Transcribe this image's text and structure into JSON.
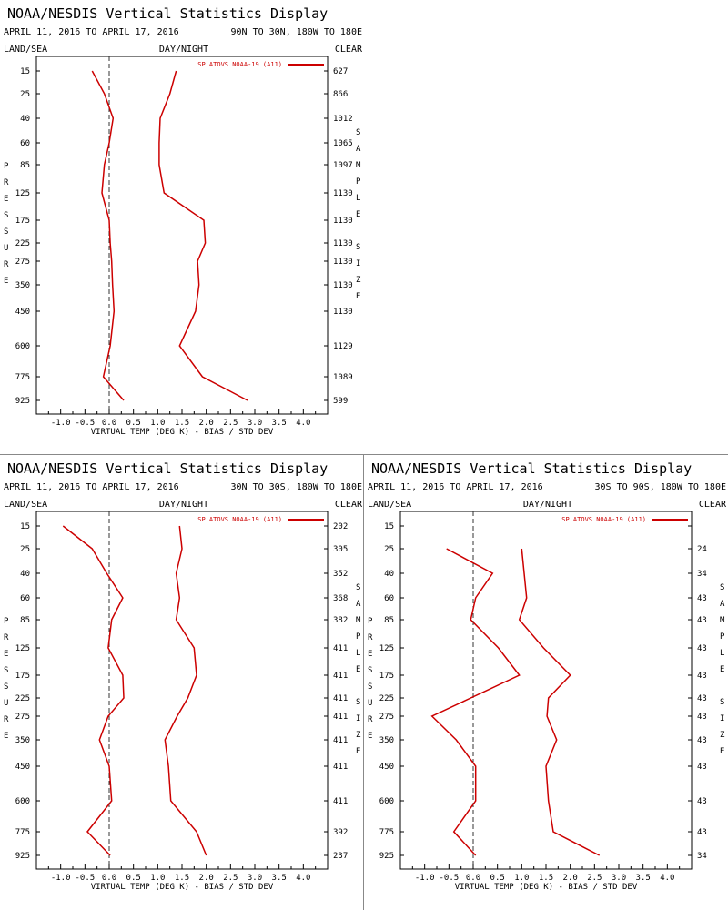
{
  "panels": [
    {
      "title": "NOAA/NESDIS Vertical Statistics Display",
      "date_range": "APRIL 11, 2016 TO APRIL 17, 2016",
      "region": "90N TO 30N, 180W TO 180E",
      "left_label": "LAND/SEA",
      "center_label": "DAY/NIGHT",
      "right_label": "CLEAR",
      "y_axis_label": "PRESSURE",
      "right_axis_label": "SAMPLE SIZE",
      "chart_data": {
        "type": "line",
        "xlabel": "VIRTUAL TEMP (DEG K) - BIAS / STD DEV",
        "xlim": [
          -1.5,
          4.5
        ],
        "x_ticks": [
          "-1.0",
          "-0.5",
          "0.0",
          "0.5",
          "1.0",
          "1.5",
          "2.0",
          "2.5",
          "3.0",
          "3.5",
          "4.0"
        ],
        "pressure_levels": [
          "15",
          "25",
          "40",
          "60",
          "85",
          "125",
          "175",
          "225",
          "275",
          "350",
          "450",
          "600",
          "775",
          "925"
        ],
        "sample_size": [
          "627",
          "866",
          "1012",
          "1065",
          "1097",
          "1130",
          "1130",
          "1130",
          "1130",
          "1130",
          "1130",
          "1129",
          "1089",
          "599"
        ],
        "legend": "SP ATOVS NOAA-19 (A11)",
        "line_color": "#cc0000",
        "series": [
          {
            "values": [
              -0.35,
              -0.1,
              0.08,
              0.0,
              -0.1,
              -0.15,
              0.0,
              0.02,
              0.05,
              0.07,
              0.1,
              0.02,
              -0.12,
              0.3
            ]
          },
          {
            "values": [
              1.38,
              1.25,
              1.05,
              1.03,
              1.03,
              1.13,
              1.95,
              1.98,
              1.82,
              1.85,
              1.78,
              1.45,
              1.92,
              2.85
            ]
          }
        ]
      }
    },
    {
      "title": "NOAA/NESDIS Vertical Statistics Display",
      "date_range": "APRIL 11, 2016 TO APRIL 17, 2016",
      "region": "30N TO 30S, 180W TO 180E",
      "left_label": "LAND/SEA",
      "center_label": "DAY/NIGHT",
      "right_label": "CLEAR",
      "y_axis_label": "PRESSURE",
      "right_axis_label": "SAMPLE SIZE",
      "chart_data": {
        "type": "line",
        "xlabel": "VIRTUAL TEMP (DEG K) - BIAS / STD DEV",
        "xlim": [
          -1.5,
          4.5
        ],
        "x_ticks": [
          "-1.0",
          "-0.5",
          "0.0",
          "0.5",
          "1.0",
          "1.5",
          "2.0",
          "2.5",
          "3.0",
          "3.5",
          "4.0"
        ],
        "pressure_levels": [
          "15",
          "25",
          "40",
          "60",
          "85",
          "125",
          "175",
          "225",
          "275",
          "350",
          "450",
          "600",
          "775",
          "925"
        ],
        "sample_size": [
          "202",
          "305",
          "352",
          "368",
          "382",
          "411",
          "411",
          "411",
          "411",
          "411",
          "411",
          "411",
          "392",
          "237"
        ],
        "legend": "SP ATOVS NOAA-19 (A11)",
        "line_color": "#cc0000",
        "series": [
          {
            "values": [
              -0.95,
              -0.35,
              -0.05,
              0.28,
              0.05,
              -0.02,
              0.28,
              0.3,
              -0.02,
              -0.2,
              0.0,
              0.05,
              -0.45,
              0.02
            ]
          },
          {
            "values": [
              1.45,
              1.5,
              1.38,
              1.45,
              1.38,
              1.75,
              1.8,
              1.62,
              1.4,
              1.15,
              1.22,
              1.27,
              1.8,
              2.0
            ]
          }
        ]
      }
    },
    {
      "title": "NOAA/NESDIS Vertical Statistics Display",
      "date_range": "APRIL 11, 2016 TO APRIL 17, 2016",
      "region": "30S TO 90S, 180W TO 180E",
      "left_label": "LAND/SEA",
      "center_label": "DAY/NIGHT",
      "right_label": "CLEAR",
      "y_axis_label": "PRESSURE",
      "right_axis_label": "SAMPLE SIZE",
      "chart_data": {
        "type": "line",
        "xlabel": "VIRTUAL TEMP (DEG K) - BIAS / STD DEV",
        "xlim": [
          -1.5,
          4.5
        ],
        "x_ticks": [
          "-1.0",
          "-0.5",
          "0.0",
          "0.5",
          "1.0",
          "1.5",
          "2.0",
          "2.5",
          "3.0",
          "3.5",
          "4.0"
        ],
        "pressure_levels": [
          "15",
          "25",
          "40",
          "60",
          "85",
          "125",
          "175",
          "225",
          "275",
          "350",
          "450",
          "600",
          "775",
          "925"
        ],
        "sample_size": [
          "",
          "24",
          "34",
          "43",
          "43",
          "43",
          "43",
          "43",
          "43",
          "43",
          "43",
          "43",
          "43",
          "34"
        ],
        "legend": "SP ATOVS NOAA-19 (A11)",
        "line_color": "#cc0000",
        "series": [
          {
            "values": [
              null,
              -0.55,
              0.4,
              0.05,
              -0.05,
              0.52,
              0.95,
              -0.05,
              -0.85,
              -0.35,
              0.05,
              0.05,
              -0.4,
              0.05
            ]
          },
          {
            "values": [
              null,
              1.0,
              1.05,
              1.1,
              0.95,
              1.45,
              2.0,
              1.55,
              1.52,
              1.72,
              1.5,
              1.55,
              1.65,
              2.6
            ]
          }
        ]
      }
    }
  ]
}
